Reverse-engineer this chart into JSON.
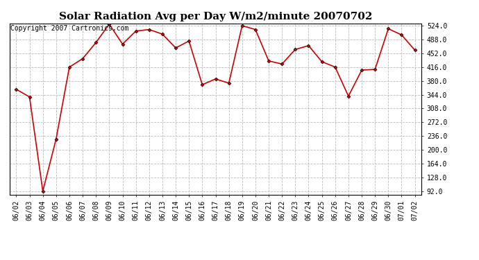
{
  "title": "Solar Radiation Avg per Day W/m2/minute 20070702",
  "copyright_text": "Copyright 2007 Cartronics.com",
  "dates": [
    "06/02",
    "06/03",
    "06/04",
    "06/05",
    "06/06",
    "06/07",
    "06/08",
    "06/09",
    "06/10",
    "06/11",
    "06/12",
    "06/13",
    "06/14",
    "06/15",
    "06/16",
    "06/17",
    "06/18",
    "06/19",
    "06/20",
    "06/21",
    "06/22",
    "06/23",
    "06/24",
    "06/25",
    "06/26",
    "06/27",
    "06/28",
    "06/29",
    "06/30",
    "07/01",
    "07/02"
  ],
  "values": [
    358,
    338,
    92,
    228,
    416,
    438,
    480,
    528,
    476,
    510,
    514,
    502,
    466,
    484,
    370,
    385,
    374,
    524,
    514,
    432,
    424,
    462,
    472,
    430,
    416,
    340,
    408,
    410,
    516,
    500,
    460
  ],
  "line_color": "#cc0000",
  "marker": "D",
  "marker_size": 2.5,
  "background_color": "#ffffff",
  "plot_background": "#ffffff",
  "grid_color": "#bbbbbb",
  "ylim_min": 82,
  "ylim_max": 530,
  "yticks": [
    92.0,
    128.0,
    164.0,
    200.0,
    236.0,
    272.0,
    308.0,
    344.0,
    380.0,
    416.0,
    452.0,
    488.0,
    524.0
  ],
  "title_fontsize": 11,
  "tick_fontsize": 7,
  "copyright_fontsize": 7
}
